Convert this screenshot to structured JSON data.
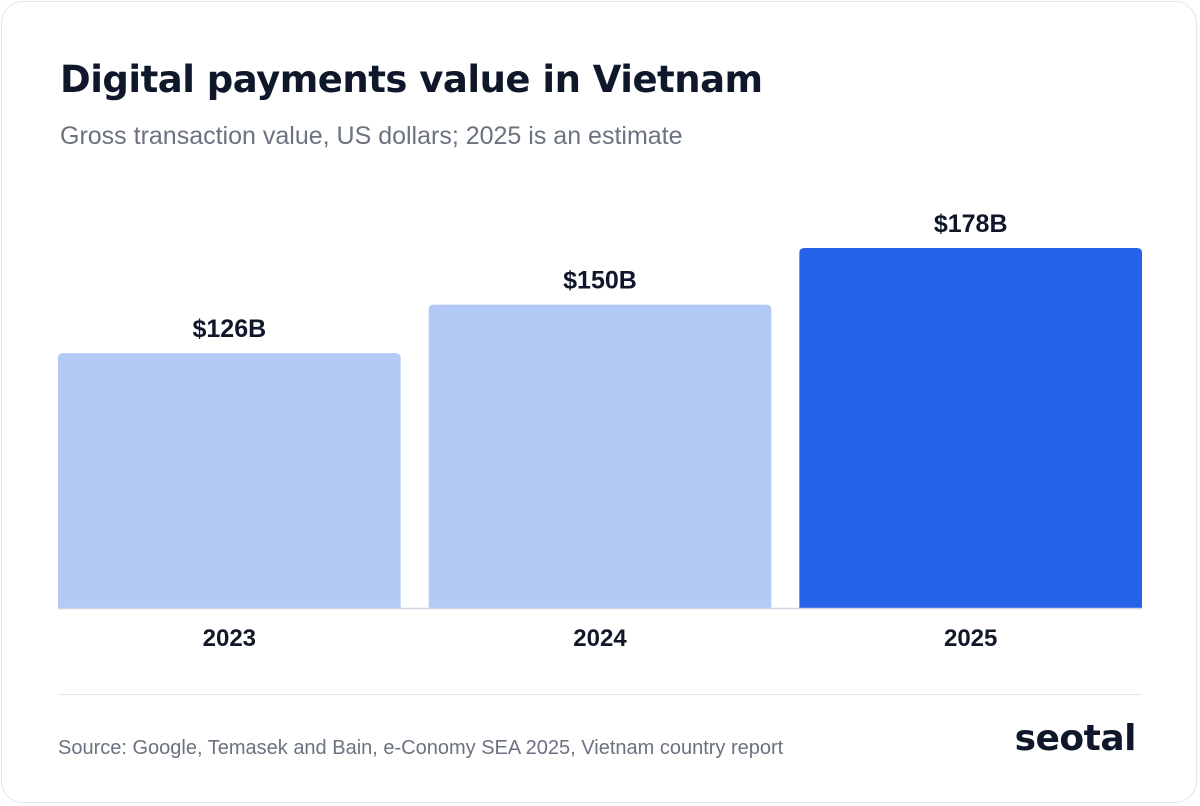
{
  "chart_data": {
    "type": "bar",
    "title": "Digital payments value in Vietnam",
    "subtitle": "Gross transaction value, US dollars; 2025 is an estimate",
    "categories": [
      "2023",
      "2024",
      "2025"
    ],
    "values": [
      126,
      150,
      178
    ],
    "value_labels": [
      "$126B",
      "$150B",
      "$178B"
    ],
    "unit": "USD billions",
    "ylim": [
      0,
      200
    ],
    "grid": false,
    "bar_colors": [
      "#b3c9f6",
      "#b3c9f6",
      "#2563eb"
    ],
    "axis_color": "#cfd6df"
  },
  "footer": {
    "source": "Source: Google, Temasek and Bain, e-Conomy SEA 2025, Vietnam country report",
    "logo_text": "seotal"
  }
}
